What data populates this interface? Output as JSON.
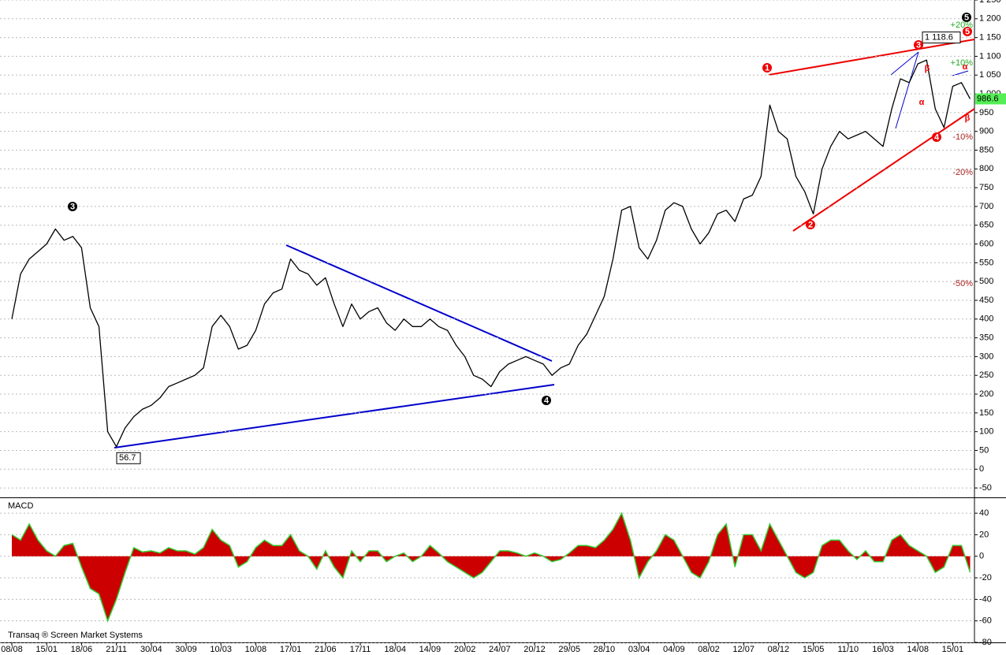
{
  "chart_data": [
    {
      "type": "line",
      "series": [
        {
          "name": "Price",
          "color": "#000000",
          "values": [
            400,
            520,
            560,
            580,
            600,
            640,
            610,
            620,
            590,
            430,
            380,
            100,
            60,
            110,
            140,
            160,
            170,
            190,
            220,
            230,
            240,
            250,
            270,
            380,
            410,
            380,
            320,
            330,
            370,
            440,
            470,
            480,
            560,
            530,
            520,
            490,
            510,
            440,
            380,
            440,
            400,
            420,
            430,
            390,
            370,
            400,
            380,
            380,
            400,
            380,
            370,
            330,
            300,
            250,
            240,
            220,
            260,
            280,
            290,
            300,
            290,
            280,
            250,
            270,
            280,
            330,
            360,
            410,
            460,
            560,
            690,
            700,
            590,
            560,
            610,
            690,
            710,
            700,
            640,
            600,
            630,
            680,
            690,
            660,
            720,
            730,
            780,
            970,
            900,
            880,
            780,
            740,
            680,
            800,
            860,
            900,
            880,
            890,
            900,
            880,
            860,
            960,
            1040,
            1030,
            1080,
            1090,
            960,
            910,
            1020,
            1030,
            986.6
          ]
        }
      ],
      "ylim": [
        -75,
        1250
      ],
      "yticks": [
        {
          "value": 1250,
          "label": "1 250"
        },
        {
          "value": 1200,
          "label": "1 200"
        },
        {
          "value": 1150,
          "label": "1 150"
        },
        {
          "value": 1100,
          "label": "1 100"
        },
        {
          "value": 1050,
          "label": "1 050"
        },
        {
          "value": 1000,
          "label": "1 000"
        },
        950,
        900,
        850,
        800,
        750,
        700,
        650,
        600,
        550,
        500,
        450,
        400,
        350,
        300,
        250,
        200,
        150,
        100,
        50,
        0,
        -50
      ],
      "grid": true,
      "extremes": [
        {
          "value": 56.7,
          "label": "56.7"
        },
        {
          "value": 1118.6,
          "label": "1 118.6"
        }
      ],
      "annotations": [
        "3",
        "4",
        "5",
        "1",
        "2",
        "3",
        "4",
        "5",
        "β",
        "α",
        "α",
        "β",
        "+20%",
        "+10%",
        "-10%",
        "-20%",
        "-50%"
      ]
    },
    {
      "type": "area",
      "title": "MACD",
      "series": [
        {
          "name": "MACD",
          "color": "#cc0000",
          "edge_color": "#33cc33",
          "values": [
            20,
            15,
            30,
            15,
            5,
            0,
            10,
            12,
            -10,
            -30,
            -35,
            -60,
            -40,
            -15,
            8,
            4,
            5,
            3,
            8,
            5,
            5,
            2,
            8,
            25,
            15,
            10,
            -10,
            -5,
            8,
            15,
            10,
            10,
            20,
            5,
            0,
            -12,
            5,
            -10,
            -20,
            5,
            -5,
            5,
            5,
            -5,
            0,
            3,
            -5,
            0,
            10,
            3,
            -5,
            -10,
            -15,
            -20,
            -15,
            -5,
            5,
            5,
            3,
            0,
            3,
            0,
            -5,
            -3,
            3,
            10,
            10,
            8,
            15,
            25,
            40,
            15,
            -20,
            -5,
            5,
            20,
            15,
            0,
            -15,
            -20,
            -5,
            20,
            30,
            -10,
            20,
            20,
            5,
            30,
            15,
            0,
            -15,
            -20,
            -15,
            10,
            15,
            15,
            5,
            -3,
            5,
            -5,
            -5,
            15,
            20,
            10,
            5,
            0,
            -15,
            -10,
            10,
            10,
            -15
          ]
        }
      ],
      "categories": [
        "08/08",
        null,
        null,
        null,
        "15/01",
        null,
        null,
        null,
        "18/06",
        null,
        null,
        null,
        "21/11",
        null,
        null,
        null,
        "30/04",
        null,
        null,
        null,
        "30/09",
        null,
        null,
        null,
        "10/03",
        null,
        null,
        null,
        "10/08",
        null,
        null,
        null,
        "17/01",
        null,
        null,
        null,
        "21/06",
        null,
        null,
        null,
        "17/11",
        null,
        null,
        null,
        "18/04",
        null,
        null,
        null,
        "14/09",
        null,
        null,
        null,
        "20/02",
        null,
        null,
        null,
        "24/07",
        null,
        null,
        null,
        "20/12",
        null,
        null,
        null,
        "29/05",
        null,
        null,
        null,
        "28/10",
        null,
        null,
        null,
        "03/04",
        null,
        null,
        null,
        "04/09",
        null,
        null,
        null,
        "08/02",
        null,
        null,
        null,
        "12/07",
        null,
        null,
        null,
        "08/12",
        null,
        null,
        null,
        "15/05",
        null,
        null,
        null,
        "11/10",
        null,
        null,
        null,
        "16/03",
        null,
        null,
        null,
        "14/08",
        null,
        null,
        null,
        "15/01",
        null,
        null
      ],
      "ylim": [
        -80,
        54
      ],
      "yticks": [
        40,
        20,
        0,
        -20,
        -40,
        -60,
        -80
      ],
      "grid": true,
      "source": "Transaq ® Screen Market Systems"
    }
  ]
}
